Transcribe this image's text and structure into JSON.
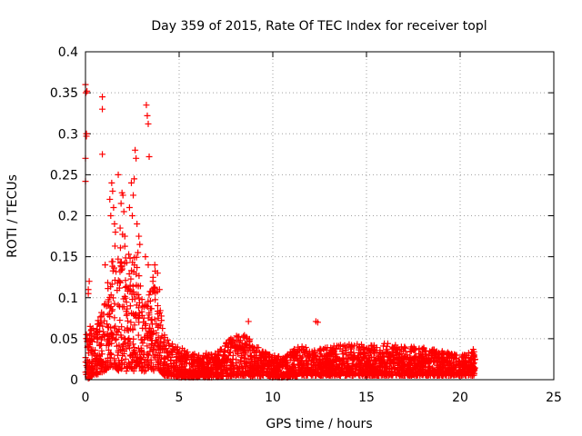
{
  "chart_data": {
    "type": "scatter",
    "title": "Day 359 of 2015, Rate Of TEC Index for receiver topl",
    "xlabel": "GPS time / hours",
    "ylabel": "ROTI / TECUs",
    "xlim": [
      0,
      25
    ],
    "ylim": [
      0,
      0.4
    ],
    "xticks": [
      0,
      5,
      10,
      15,
      20,
      25
    ],
    "xtick_labels": [
      "0",
      "5",
      "10",
      "15",
      "20",
      "25"
    ],
    "yticks": [
      0,
      0.05,
      0.1,
      0.15,
      0.2,
      0.25,
      0.3,
      0.35,
      0.4
    ],
    "ytick_labels": [
      "0",
      "0.05",
      "0.1",
      "0.15",
      "0.2",
      "0.25",
      "0.3",
      "0.35",
      "0.4"
    ],
    "grid": true,
    "marker": "+",
    "color": "#ff0000",
    "series": [
      {
        "points": [
          [
            0.0,
            0.27
          ],
          [
            0.0,
            0.242
          ],
          [
            0.0,
            0.36
          ],
          [
            0.02,
            0.35
          ],
          [
            0.05,
            0.297
          ],
          [
            0.05,
            0.3
          ],
          [
            0.08,
            0.352
          ],
          [
            0.15,
            0.11
          ],
          [
            0.2,
            0.12
          ],
          [
            0.15,
            0.105
          ],
          [
            0.25,
            0.065
          ],
          [
            0.3,
            0.06
          ],
          [
            0.1,
            0.05
          ],
          [
            0.05,
            0.055
          ],
          [
            0.2,
            0.04
          ],
          [
            0.35,
            0.03
          ],
          [
            0.1,
            0.015
          ],
          [
            0.3,
            0.01
          ],
          [
            0.9,
            0.345
          ],
          [
            0.9,
            0.33
          ],
          [
            0.9,
            0.275
          ],
          [
            1.05,
            0.14
          ],
          [
            1.4,
            0.24
          ],
          [
            1.45,
            0.23
          ],
          [
            1.3,
            0.22
          ],
          [
            1.5,
            0.21
          ],
          [
            1.35,
            0.2
          ],
          [
            1.55,
            0.19
          ],
          [
            1.75,
            0.25
          ],
          [
            1.6,
            0.18
          ],
          [
            1.95,
            0.228
          ],
          [
            2.0,
            0.225
          ],
          [
            1.9,
            0.215
          ],
          [
            2.05,
            0.205
          ],
          [
            1.85,
            0.185
          ],
          [
            2.1,
            0.175
          ],
          [
            2.65,
            0.28
          ],
          [
            2.7,
            0.27
          ],
          [
            2.6,
            0.245
          ],
          [
            2.55,
            0.225
          ],
          [
            2.45,
            0.24
          ],
          [
            2.35,
            0.21
          ],
          [
            2.5,
            0.2
          ],
          [
            2.75,
            0.19
          ],
          [
            2.85,
            0.175
          ],
          [
            2.9,
            0.165
          ],
          [
            2.8,
            0.155
          ],
          [
            3.25,
            0.335
          ],
          [
            3.3,
            0.322
          ],
          [
            3.35,
            0.312
          ],
          [
            3.4,
            0.272
          ],
          [
            3.2,
            0.15
          ],
          [
            3.35,
            0.14
          ],
          [
            3.7,
            0.14
          ],
          [
            3.85,
            0.13
          ],
          [
            3.6,
            0.12
          ],
          [
            3.95,
            0.11
          ],
          [
            8.7,
            0.071
          ],
          [
            12.3,
            0.071
          ],
          [
            12.4,
            0.07
          ],
          [
            20.6,
            0.01
          ],
          [
            20.7,
            0.02
          ],
          [
            20.75,
            0.03
          ],
          [
            20.7,
            0.037
          ],
          [
            20.8,
            0.025
          ],
          [
            20.65,
            0.005
          ]
        ]
      }
    ],
    "band_envelope": [
      [
        0.0,
        0.0,
        0.055
      ],
      [
        0.5,
        0.005,
        0.065
      ],
      [
        1.0,
        0.01,
        0.09
      ],
      [
        1.3,
        0.015,
        0.14
      ],
      [
        1.6,
        0.015,
        0.175
      ],
      [
        1.8,
        0.01,
        0.16
      ],
      [
        2.0,
        0.015,
        0.18
      ],
      [
        2.2,
        0.01,
        0.15
      ],
      [
        2.4,
        0.015,
        0.17
      ],
      [
        2.6,
        0.01,
        0.17
      ],
      [
        2.8,
        0.02,
        0.16
      ],
      [
        3.0,
        0.01,
        0.12
      ],
      [
        3.2,
        0.01,
        0.09
      ],
      [
        3.4,
        0.015,
        0.11
      ],
      [
        3.6,
        0.01,
        0.14
      ],
      [
        3.8,
        0.015,
        0.14
      ],
      [
        4.0,
        0.01,
        0.09
      ],
      [
        4.2,
        0.005,
        0.06
      ],
      [
        4.5,
        0.005,
        0.045
      ],
      [
        5.0,
        0.003,
        0.04
      ],
      [
        6.0,
        0.003,
        0.03
      ],
      [
        7.0,
        0.003,
        0.035
      ],
      [
        8.0,
        0.005,
        0.055
      ],
      [
        8.5,
        0.005,
        0.055
      ],
      [
        9.0,
        0.003,
        0.045
      ],
      [
        9.5,
        0.005,
        0.035
      ],
      [
        10.0,
        0.003,
        0.03
      ],
      [
        10.5,
        0.003,
        0.028
      ],
      [
        11.0,
        0.003,
        0.035
      ],
      [
        11.5,
        0.005,
        0.045
      ],
      [
        12.0,
        0.005,
        0.035
      ],
      [
        13.0,
        0.005,
        0.04
      ],
      [
        14.0,
        0.005,
        0.045
      ],
      [
        15.0,
        0.005,
        0.042
      ],
      [
        16.0,
        0.005,
        0.045
      ],
      [
        17.0,
        0.005,
        0.04
      ],
      [
        18.0,
        0.005,
        0.04
      ],
      [
        19.0,
        0.005,
        0.035
      ],
      [
        20.0,
        0.005,
        0.03
      ],
      [
        20.8,
        0.005,
        0.035
      ]
    ]
  }
}
